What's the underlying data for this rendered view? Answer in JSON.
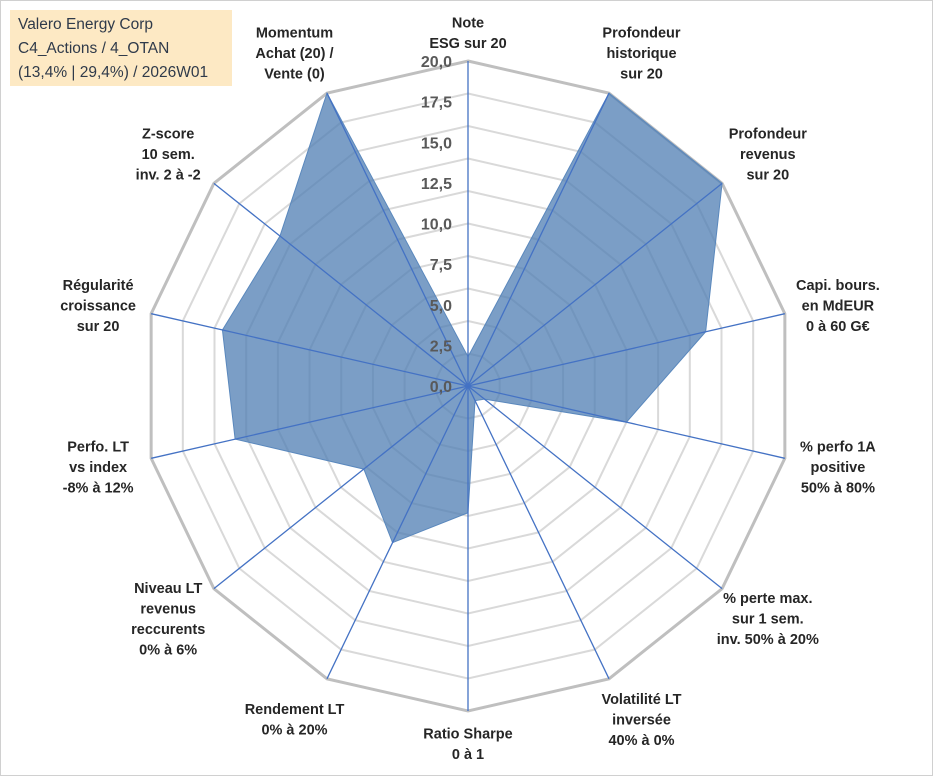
{
  "info": {
    "line1": "Valero Energy Corp",
    "line2": "C4_Actions / 4_OTAN",
    "line3": "(13,4% | 29,4%) / 2026W01"
  },
  "chart_data": {
    "type": "radar",
    "title": "",
    "rmin": 0,
    "rmax": 20,
    "ticks": [
      "0,0",
      "2,5",
      "5,0",
      "7,5",
      "10,0",
      "12,5",
      "15,0",
      "17,5",
      "20,0"
    ],
    "tick_values": [
      0,
      2.5,
      5,
      7.5,
      10,
      12.5,
      15,
      17.5,
      20
    ],
    "ring_step": 2,
    "categories": [
      [
        "Note",
        "ESG sur 20"
      ],
      [
        "Profondeur",
        "historique",
        "sur 20"
      ],
      [
        "Profondeur",
        "revenus",
        "sur 20"
      ],
      [
        "Capi. bours.",
        "en MdEUR",
        "0 à 60 G€"
      ],
      [
        "% perfo 1A",
        "positive",
        "50% à 80%"
      ],
      [
        "% perte max.",
        "sur 1 sem.",
        "inv. 50% à 20%"
      ],
      [
        "Volatilité LT",
        "inversée",
        "40% à 0%"
      ],
      [
        "Ratio Sharpe",
        "0 à 1"
      ],
      [
        "Rendement LT",
        "0% à 20%"
      ],
      [
        "Niveau LT",
        "revenus",
        "reccurents",
        "0% à 6%"
      ],
      [
        "Perfo. LT",
        "vs index",
        "-8% à 12%"
      ],
      [
        "Régularité",
        "croissance",
        "sur 20"
      ],
      [
        "Z-score",
        "10 sem.",
        "inv. 2 à -2"
      ],
      [
        "Momentum",
        "Achat (20) /",
        "Vente (0)"
      ]
    ],
    "series": [
      {
        "name": "Valero Energy Corp",
        "values": [
          1.8,
          20,
          20,
          15,
          10,
          1.3,
          1.0,
          7.8,
          10.7,
          8.2,
          14.7,
          15.5,
          14.8,
          20
        ],
        "color": "#4f7eb3"
      }
    ]
  }
}
